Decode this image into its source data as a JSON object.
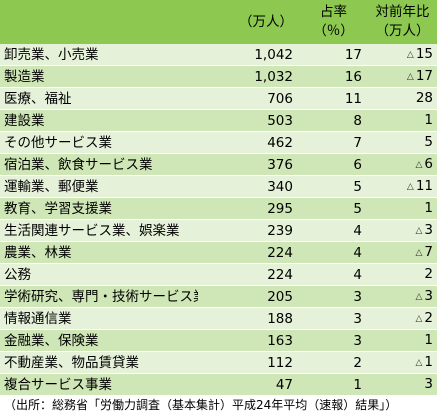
{
  "header": {
    "workers_line1": "（万人）",
    "share_line1": "占率",
    "share_line2": "（％）",
    "change_line1": "対前年比",
    "change_line2": "（万人）"
  },
  "rows": [
    {
      "industry": "卸売業、小売業",
      "workers": "1,042",
      "share": "17",
      "change_sign": "△",
      "change": "15"
    },
    {
      "industry": "製造業",
      "workers": "1,032",
      "share": "16",
      "change_sign": "△",
      "change": "17"
    },
    {
      "industry": "医療、福祉",
      "workers": "706",
      "share": "11",
      "change_sign": "",
      "change": "28"
    },
    {
      "industry": "建設業",
      "workers": "503",
      "share": "8",
      "change_sign": "",
      "change": "1"
    },
    {
      "industry": "その他サービス業",
      "workers": "462",
      "share": "7",
      "change_sign": "",
      "change": "5"
    },
    {
      "industry": "宿泊業、飲食サービス業",
      "workers": "376",
      "share": "6",
      "change_sign": "△",
      "change": "6"
    },
    {
      "industry": "運輸業、郵便業",
      "workers": "340",
      "share": "5",
      "change_sign": "△",
      "change": "11"
    },
    {
      "industry": "教育、学習支援業",
      "workers": "295",
      "share": "5",
      "change_sign": "",
      "change": "1"
    },
    {
      "industry": "生活関連サービス業、娯楽業",
      "workers": "239",
      "share": "4",
      "change_sign": "△",
      "change": "3"
    },
    {
      "industry": "農業、林業",
      "workers": "224",
      "share": "4",
      "change_sign": "△",
      "change": "7"
    },
    {
      "industry": "公務",
      "workers": "224",
      "share": "4",
      "change_sign": "",
      "change": "2"
    },
    {
      "industry": "学術研究、専門・技術サービス業",
      "workers": "205",
      "share": "3",
      "change_sign": "△",
      "change": "3"
    },
    {
      "industry": "情報通信業",
      "workers": "188",
      "share": "3",
      "change_sign": "△",
      "change": "2"
    },
    {
      "industry": "金融業、保険業",
      "workers": "163",
      "share": "3",
      "change_sign": "",
      "change": "1"
    },
    {
      "industry": "不動産業、物品賃貸業",
      "workers": "112",
      "share": "2",
      "change_sign": "△",
      "change": "1"
    },
    {
      "industry": "複合サービス事業",
      "workers": "47",
      "share": "1",
      "change_sign": "",
      "change": "3"
    }
  ],
  "source": "（出所：総務省「労働力調査（基本集計）平成24年平均（速報）結果」）",
  "colors": {
    "header_bg": "#8dc850",
    "row_light": "#e6f1d9",
    "row_dark": "#cfe6b6"
  }
}
